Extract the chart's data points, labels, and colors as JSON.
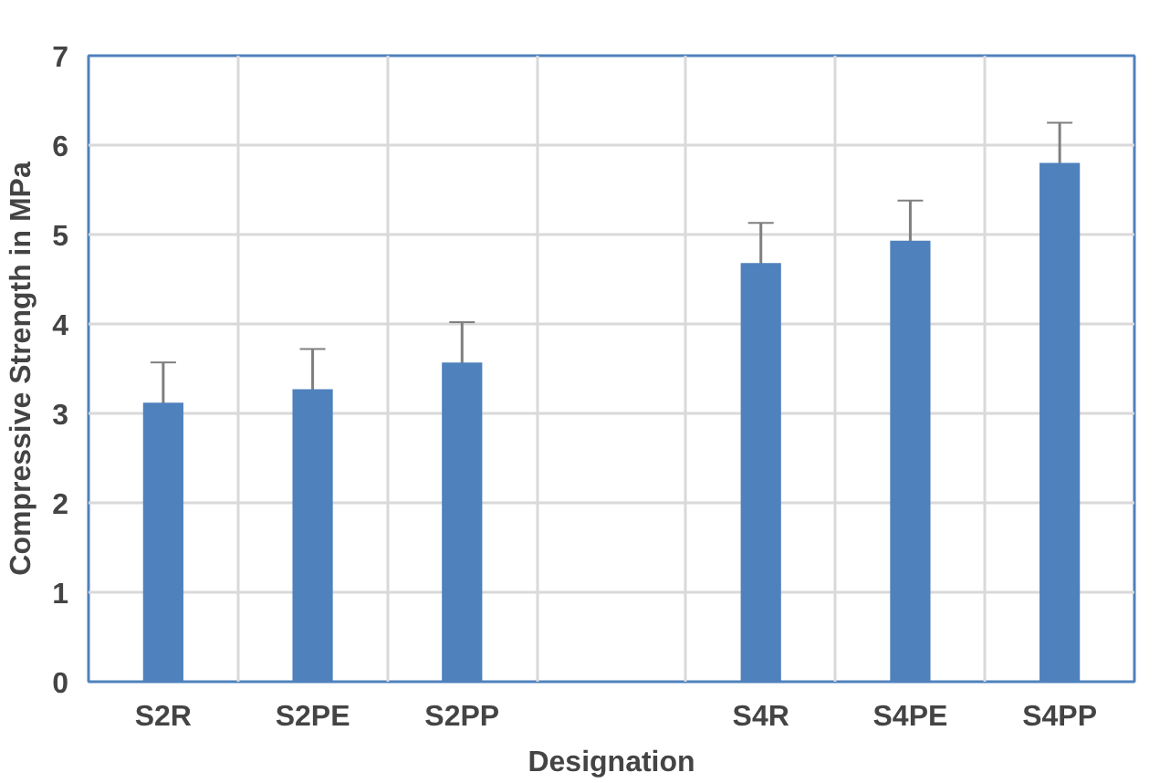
{
  "chart_data": {
    "type": "bar",
    "xlabel": "Designation",
    "ylabel": "Compressive Strength in MPa",
    "categories": [
      "S2R",
      "S2PE",
      "S2PP",
      null,
      "S4R",
      "S4PE",
      "S4PP"
    ],
    "values": [
      3.12,
      3.27,
      3.57,
      null,
      4.68,
      4.93,
      5.8
    ],
    "errors": [
      0.45,
      0.45,
      0.45,
      null,
      0.45,
      0.45,
      0.45
    ],
    "color": "#4f81bd",
    "ylim": [
      0,
      7
    ],
    "yticks": [
      0,
      1,
      2,
      3,
      4,
      5,
      6,
      7
    ],
    "grid": true
  }
}
